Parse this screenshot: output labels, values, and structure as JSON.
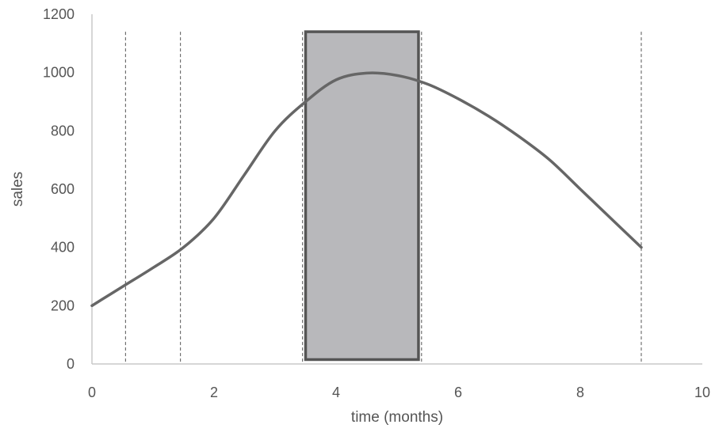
{
  "chart_data": {
    "type": "line",
    "title": "",
    "xlabel": "time (months)",
    "ylabel": "sales",
    "xlim": [
      0,
      10
    ],
    "ylim": [
      0,
      1200
    ],
    "x_ticks": [
      0,
      2,
      4,
      6,
      8,
      10
    ],
    "y_ticks": [
      0,
      200,
      400,
      600,
      800,
      1000,
      1200
    ],
    "grid": false,
    "series": [
      {
        "color": "#666666",
        "x": [
          0,
          0.5,
          1,
          1.5,
          2,
          2.5,
          3,
          3.5,
          4,
          4.5,
          5,
          5.5,
          6,
          6.5,
          7,
          7.5,
          8,
          8.5,
          9
        ],
        "y": [
          200,
          265,
          330,
          400,
          500,
          650,
          800,
          900,
          975,
          998,
          990,
          960,
          910,
          850,
          780,
          700,
          600,
          500,
          400
        ]
      }
    ],
    "vertical_dashed_lines": [
      0.55,
      1.45,
      3.45,
      5.4,
      9.0
    ],
    "shaded_rect": {
      "x_start": 3.5,
      "x_end": 5.35,
      "y_bottom": 15,
      "y_top": 1140,
      "color": "#b8b8bb"
    }
  }
}
